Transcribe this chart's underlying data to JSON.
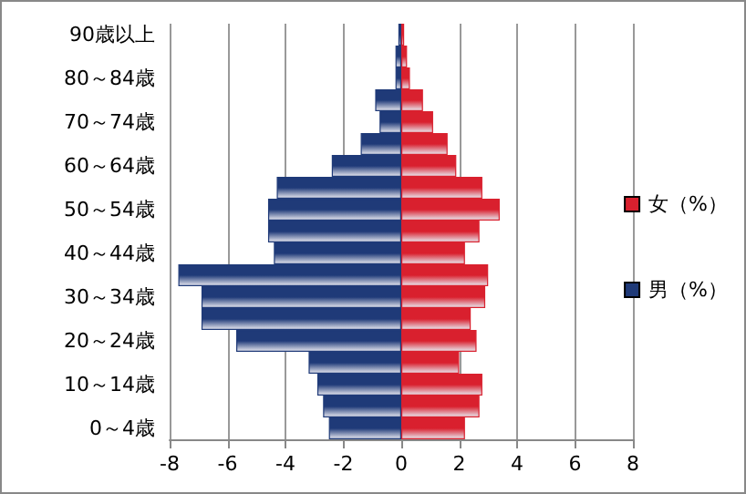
{
  "chart_data": {
    "type": "bar",
    "orientation": "horizontal",
    "categories": [
      "90歳以上",
      null,
      "80～84歳",
      null,
      "70～74歳",
      null,
      "60～64歳",
      null,
      "50～54歳",
      null,
      "40～44歳",
      null,
      "30～34歳",
      null,
      "20～24歳",
      null,
      "10～14歳",
      null,
      "0～4歳"
    ],
    "series": [
      {
        "name": "女（%）",
        "color": "#d9202e",
        "values": [
          0.1,
          0.2,
          0.3,
          0.75,
          1.1,
          1.6,
          1.9,
          2.8,
          3.4,
          2.7,
          2.2,
          3.0,
          2.9,
          2.4,
          2.6,
          2.0,
          2.8,
          2.7,
          2.2
        ]
      },
      {
        "name": "男（%）",
        "color": "#1f3a78",
        "values": [
          -0.1,
          -0.2,
          -0.2,
          -0.9,
          -0.75,
          -1.4,
          -2.4,
          -4.3,
          -4.6,
          -4.6,
          -4.4,
          -7.7,
          -6.9,
          -6.9,
          -5.7,
          -3.2,
          -2.9,
          -2.7,
          -2.5
        ]
      }
    ],
    "xlim": [
      -8,
      8
    ],
    "xticks": [
      -8,
      -6,
      -4,
      -2,
      0,
      2,
      4,
      6,
      8
    ],
    "grid": "x",
    "legend": "right",
    "stacked": true
  }
}
